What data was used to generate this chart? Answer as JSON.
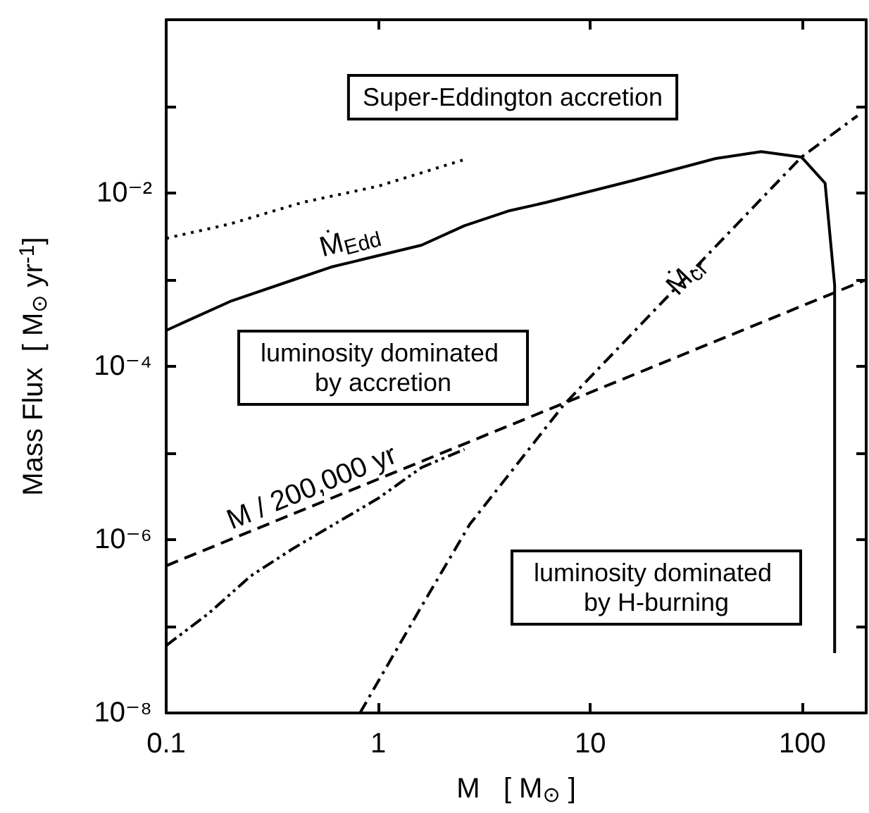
{
  "chart_data": {
    "type": "line",
    "xlabel": "M   [ M$_{⊙}$ ]",
    "ylabel": "Mass Flux  [ M$_{⊙}$ yr$^{-1}$]",
    "log": "xy",
    "xlim": [
      0.1,
      200
    ],
    "ylim": [
      1e-08,
      1
    ],
    "xticks": [
      0.1,
      1,
      10,
      100
    ],
    "yticks": [
      {
        "value": 1e-08,
        "label": "10⁻⁸"
      },
      {
        "value": 1e-07,
        "label": null
      },
      {
        "value": 1e-06,
        "label": "10⁻⁶"
      },
      {
        "value": 1e-05,
        "label": null
      },
      {
        "value": 0.0001,
        "label": "10⁻⁴"
      },
      {
        "value": 0.001,
        "label": null
      },
      {
        "value": 0.01,
        "label": "10⁻²"
      },
      {
        "value": 0.1,
        "label": null
      }
    ],
    "grid": false,
    "legend": false,
    "marker": "none",
    "series": [
      {
        "name": "Ṁ$_{Edd}$",
        "color": "#000000",
        "line_style": "solid",
        "x": [
          0.1,
          0.2,
          0.4,
          0.6,
          1.6,
          2.55,
          4.1,
          6.2,
          16,
          39,
          64,
          99,
          128,
          142,
          142
        ],
        "values": [
          0.00026,
          0.00056,
          0.001,
          0.0014,
          0.0025,
          0.0042,
          0.0062,
          0.0078,
          0.014,
          0.025,
          0.03,
          0.026,
          0.013,
          0.00087,
          4.9e-08
        ]
      },
      {
        "color": "#000000",
        "line_style": "dotted",
        "x": [
          0.1,
          0.2,
          0.44,
          1.0,
          2.5
        ],
        "values": [
          0.003,
          0.0044,
          0.0078,
          0.012,
          0.024
        ]
      },
      {
        "name": "M / 200,000 yr",
        "color": "#000000",
        "line_style": "dashed",
        "x": [
          0.1,
          200
        ],
        "values": [
          5e-07,
          0.001
        ]
      },
      {
        "color": "#000000",
        "line_style": "dashdotdot",
        "x": [
          0.1,
          0.158,
          0.25,
          0.4,
          1.0,
          1.6,
          2.55
        ],
        "values": [
          6e-08,
          1.4e-07,
          3.8e-07,
          8e-07,
          3e-06,
          6.8e-06,
          1.1e-05
        ]
      },
      {
        "name": "Ṁ$_{cr}$",
        "color": "#000000",
        "line_style": "dashdot",
        "x": [
          0.82,
          1.6,
          2.7,
          7.5,
          99,
          182
        ],
        "values": [
          1e-08,
          1.7e-07,
          1.5e-06,
          3.6e-05,
          0.026,
          0.078
        ]
      }
    ],
    "annotations": [
      "Super-Eddington accretion",
      "luminosity dominated by accretion",
      "luminosity dominated by H-burning"
    ]
  }
}
